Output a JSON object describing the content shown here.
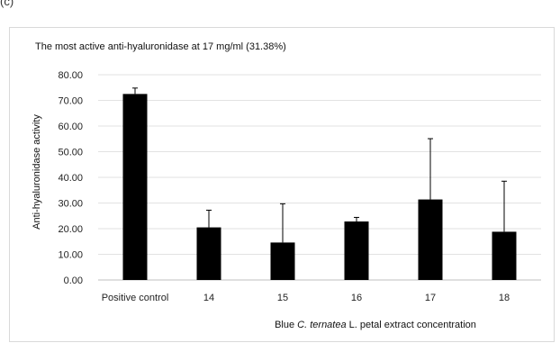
{
  "panel_label": "(c)",
  "chart_data": {
    "type": "bar",
    "title": "The most active anti-hyaluronidase at 17 mg/ml (31.38%)",
    "ylabel": "Anti-hyaluronidase activity",
    "xlabel_parts": [
      "Blue ",
      "C. ternatea",
      " L. petal extract concentration"
    ],
    "categories": [
      "Positive control",
      "14",
      "15",
      "16",
      "17",
      "18"
    ],
    "values": [
      72.5,
      20.5,
      14.6,
      22.8,
      31.38,
      18.8
    ],
    "errors": [
      2.3,
      6.7,
      15.1,
      1.6,
      23.7,
      19.7
    ],
    "ylim": [
      0,
      80
    ],
    "yticks": [
      "0.00",
      "10.00",
      "20.00",
      "30.00",
      "40.00",
      "50.00",
      "60.00",
      "70.00",
      "80.00"
    ],
    "grid": true,
    "bar_color": "#000000"
  }
}
